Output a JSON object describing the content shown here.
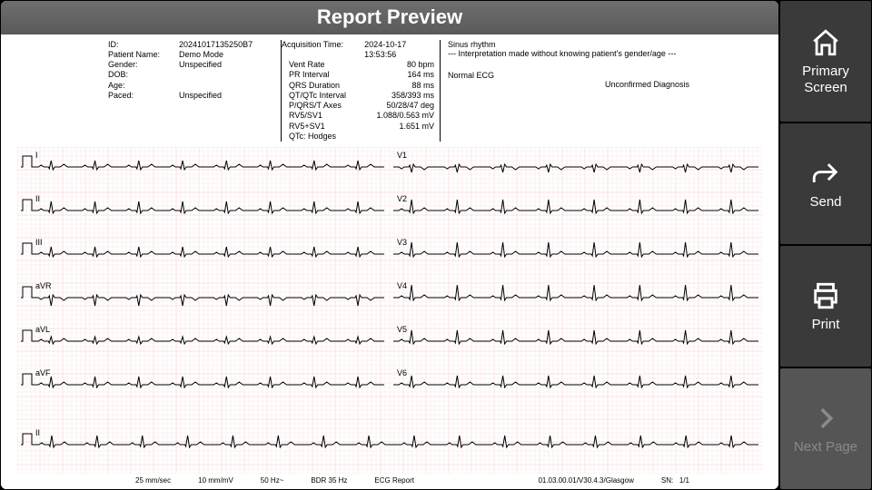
{
  "title": "Report Preview",
  "patient": {
    "id_label": "ID:",
    "id": "20241017135250B7",
    "name_label": "Patient Name:",
    "name": "Demo Mode",
    "gender_label": "Gender:",
    "gender": "Unspecified",
    "dob_label": "DOB:",
    "dob": "",
    "age_label": "Age:",
    "age": "",
    "paced_label": "Paced:",
    "paced": "Unspecified"
  },
  "acq": {
    "label": "Acquisition Time:",
    "value": "2024-10-17  13:53:56"
  },
  "measurements": [
    {
      "label": "Vent Rate",
      "value": "80 bpm"
    },
    {
      "label": "PR Interval",
      "value": "164 ms"
    },
    {
      "label": "QRS Duration",
      "value": "88 ms"
    },
    {
      "label": "QT/QTc Interval",
      "value": "358/393 ms"
    },
    {
      "label": "P/QRS/T Axes",
      "value": "50/28/47 deg"
    },
    {
      "label": "RV5/SV1",
      "value": "1.088/0.563 mV"
    },
    {
      "label": "RV5+SV1",
      "value": "1.651 mV"
    },
    {
      "label": "QTc: Hodges",
      "value": ""
    }
  ],
  "interp": {
    "line1": "Sinus rhythm",
    "line2": "--- Interpretation made without knowing patient's gender/age ---",
    "line3": "Normal ECG",
    "unconfirmed": "Unconfirmed Diagnosis"
  },
  "leads_left": [
    "I",
    "II",
    "III",
    "aVR",
    "aVL",
    "aVF"
  ],
  "leads_right": [
    "V1",
    "V2",
    "V3",
    "V4",
    "V5",
    "V6"
  ],
  "rhythm_lead": "II",
  "ecg_style": {
    "bg": "#ffffff",
    "grid_minor": "#fde6e6",
    "grid_major": "#f7c8c8",
    "trace": "#000000",
    "label_fontsize": 9
  },
  "footer": {
    "speed": "25 mm/sec",
    "gain": "10 mm/mV",
    "filter1": "50 Hz~",
    "filter2": "BDR 35 Hz",
    "title": "ECG Report",
    "version": "01.03.00.01/V30.4.3/Glasgow",
    "sn": "SN:",
    "page": "1/1"
  },
  "side": {
    "primary": "Primary Screen",
    "send": "Send",
    "print": "Print",
    "next": "Next Page"
  },
  "waveforms": {
    "beats_per_strip": 8,
    "amplitudes": {
      "I": 7,
      "II": 10,
      "III": 8,
      "aVR": -9,
      "aVL": 5,
      "aVF": 9,
      "V1": -6,
      "V2": 12,
      "V3": 13,
      "V4": 14,
      "V5": 12,
      "V6": 10,
      "rhythm": 10
    },
    "calpulse_height": 12
  }
}
